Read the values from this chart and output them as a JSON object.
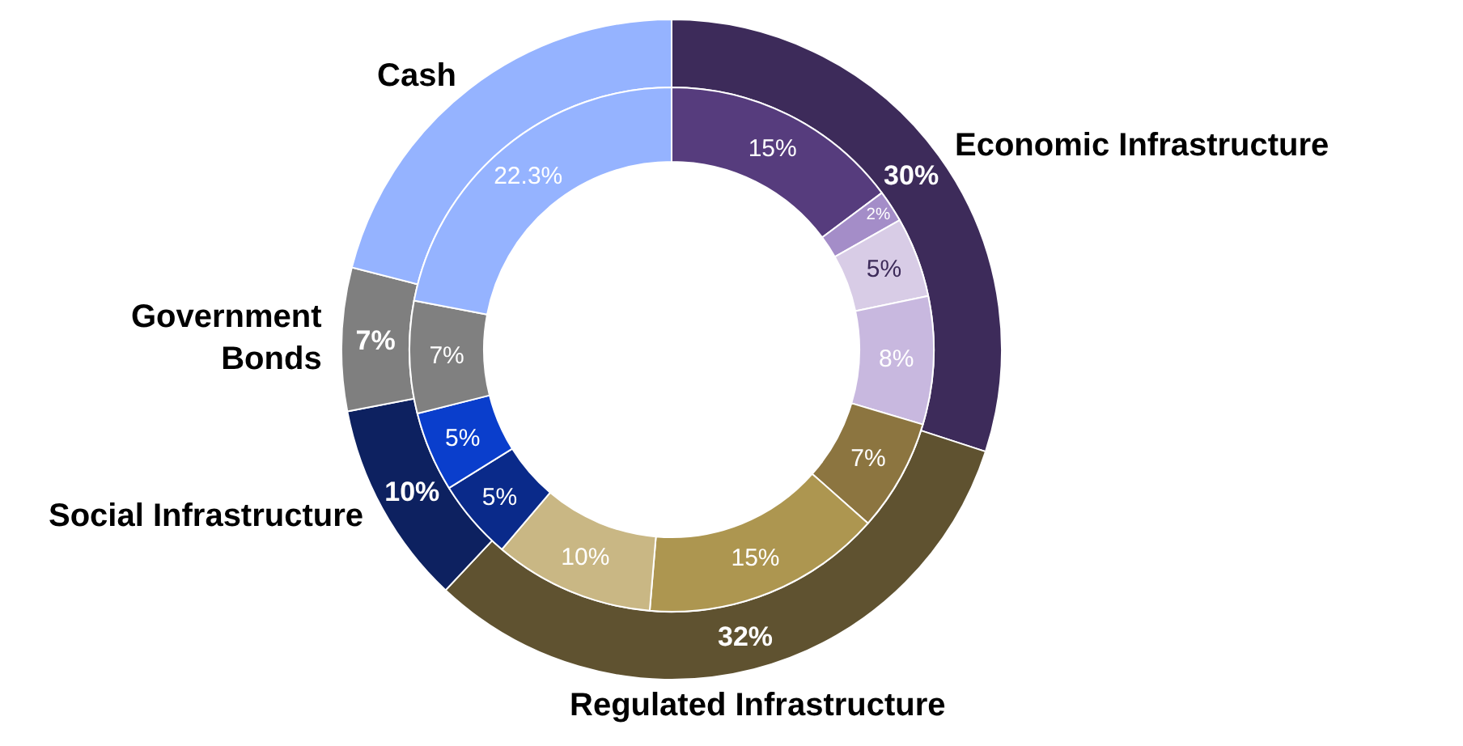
{
  "chart_data": {
    "type": "donut",
    "categories": [
      "Economic Infrastructure",
      null,
      null,
      null,
      "Regulated Infrastructure",
      null,
      null,
      "Social Infrastructure",
      null,
      "Government\nBonds",
      "Cash"
    ],
    "series": [
      {
        "values": [
          30,
          null,
          null,
          null,
          32,
          null,
          null,
          10,
          null,
          7,
          21
        ],
        "colors": [
          "#3d2b5a",
          null,
          null,
          null,
          "#5f5230",
          null,
          null,
          "#0d2160",
          null,
          "#7f7f7f",
          "#95b3ff"
        ],
        "value_labels": [
          "30%",
          null,
          null,
          null,
          "32%",
          null,
          null,
          "10%",
          null,
          "7%",
          null
        ]
      },
      {
        "values": [
          15,
          2,
          5,
          8,
          7,
          15,
          10,
          5,
          5,
          7,
          22.3
        ],
        "colors": [
          "#563c7d",
          "#a48dc8",
          "#d8cce6",
          "#c8b8df",
          "#8c7540",
          "#ad9650",
          "#c9b784",
          "#0a2a8a",
          "#0a3ecc",
          "#808080",
          "#95b3ff"
        ],
        "value_labels": [
          "15%",
          "2%",
          "5%",
          "8%",
          "7%",
          "15%",
          "10%",
          "5%",
          "5%",
          "7%",
          "22.3%"
        ]
      }
    ]
  }
}
